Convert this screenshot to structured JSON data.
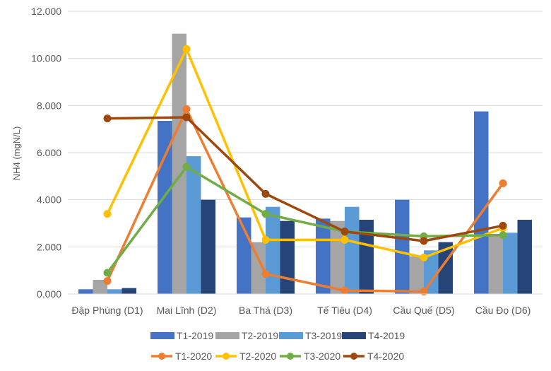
{
  "chart_data": {
    "type": "bar+line",
    "title": "",
    "xlabel": "",
    "ylabel": "NH4 (mgN/L)",
    "ylim": [
      0,
      12
    ],
    "yticks": [
      "0.000",
      "2.000",
      "4.000",
      "6.000",
      "8.000",
      "10.000",
      "12.000"
    ],
    "grid": true,
    "legend_position": "bottom",
    "categories": [
      "Đập Phùng (D1)",
      "Mai Lĩnh (D2)",
      "Ba Thá (D3)",
      "Tế Tiêu (D4)",
      "Cầu Quế (D5)",
      "Cầu Đọ (D6)"
    ],
    "bar_series": [
      {
        "name": "T1-2019",
        "color": "#4472C4",
        "values": [
          0.2,
          7.35,
          3.25,
          3.2,
          4.0,
          7.75
        ]
      },
      {
        "name": "T2-2019",
        "color": "#A5A5A5",
        "values": [
          0.6,
          11.05,
          2.2,
          3.1,
          1.6,
          2.55
        ]
      },
      {
        "name": "T3-2019",
        "color": "#5B9BD5",
        "values": [
          0.2,
          5.85,
          3.7,
          3.7,
          1.85,
          2.6
        ]
      },
      {
        "name": "T4-2019",
        "color": "#264478",
        "values": [
          0.25,
          4.0,
          3.1,
          3.15,
          2.2,
          3.15
        ]
      }
    ],
    "line_series": [
      {
        "name": "T1-2020",
        "color": "#ED7D31",
        "values": [
          0.55,
          7.85,
          0.85,
          0.15,
          0.1,
          4.7
        ]
      },
      {
        "name": "T2-2020",
        "color": "#FFC000",
        "values": [
          3.4,
          10.4,
          2.3,
          2.3,
          1.55,
          2.8
        ]
      },
      {
        "name": "T3-2020",
        "color": "#70AD47",
        "values": [
          0.9,
          5.4,
          3.4,
          2.65,
          2.45,
          2.5
        ]
      },
      {
        "name": "T4-2020",
        "color": "#9E480E",
        "values": [
          7.45,
          7.5,
          4.25,
          2.65,
          2.25,
          2.9
        ]
      }
    ]
  }
}
